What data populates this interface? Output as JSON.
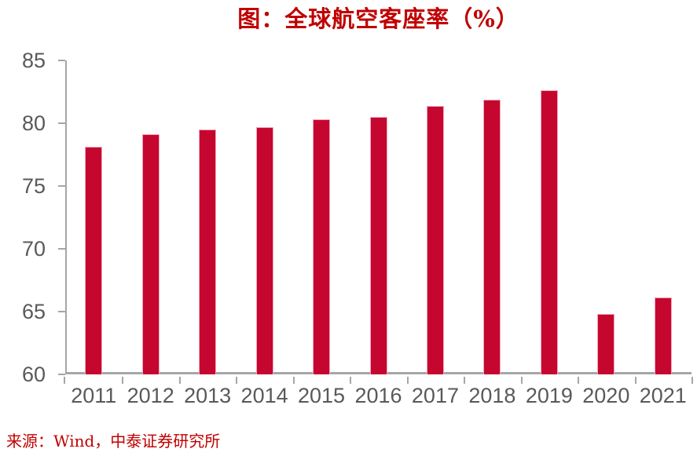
{
  "title": "图：全球航空客座率（%）",
  "source": "来源：Wind，中泰证券研究所",
  "colors": {
    "title_red": "#c00000",
    "source_red": "#c00000",
    "bar_fill": "#c5072f",
    "bar_edge": "#f0a8ba",
    "axis_line": "#a6a6a6",
    "tick_label": "#595959",
    "background": "#ffffff"
  },
  "chart_data": {
    "type": "bar",
    "title": "图：全球航空客座率（%）",
    "categories": [
      "2011",
      "2012",
      "2013",
      "2014",
      "2015",
      "2016",
      "2017",
      "2018",
      "2019",
      "2020",
      "2021"
    ],
    "values": [
      78.1,
      79.1,
      79.5,
      79.7,
      80.3,
      80.5,
      81.4,
      81.9,
      82.6,
      64.8,
      66.1
    ],
    "xlabel": "",
    "ylabel": "",
    "ylim": [
      60,
      85
    ],
    "yticks": [
      60,
      65,
      70,
      75,
      80,
      85
    ],
    "grid": false,
    "legend_position": "none",
    "bar_color": "#c5072f"
  }
}
